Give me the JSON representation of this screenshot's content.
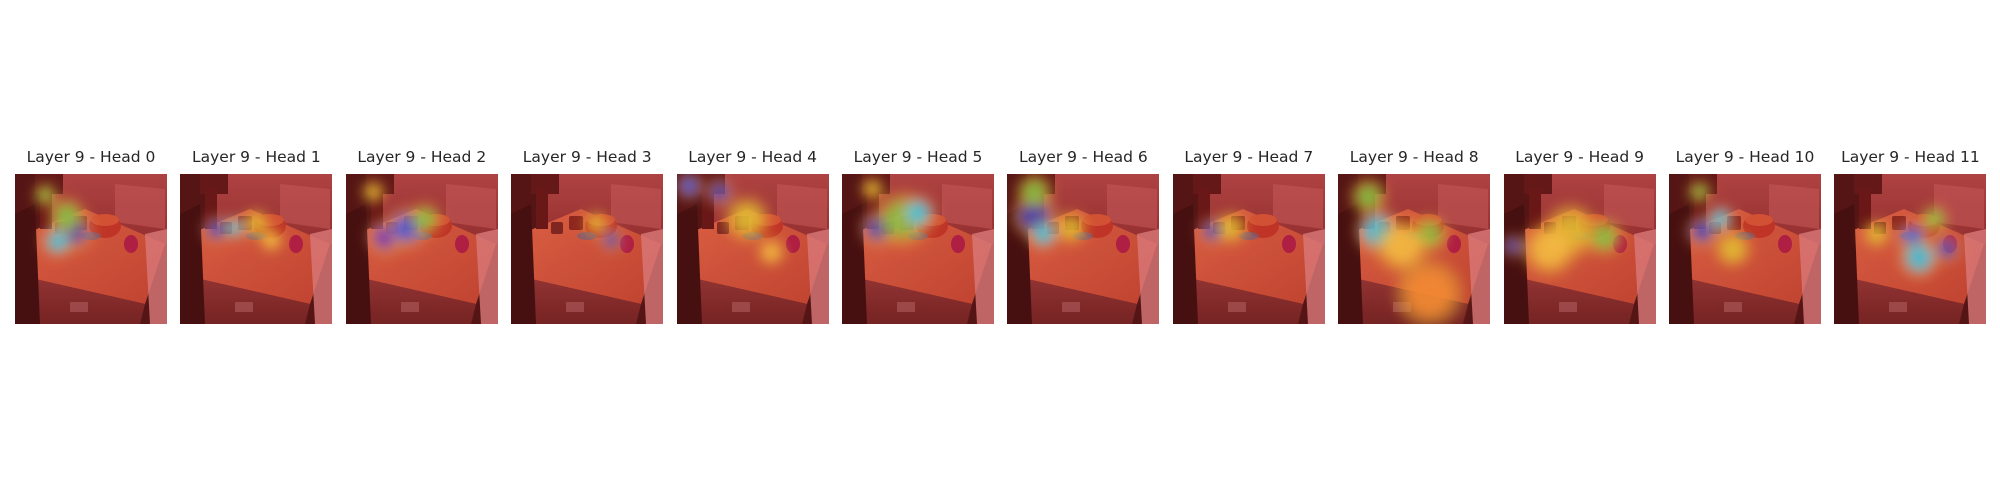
{
  "figure": {
    "panels": [
      {
        "title": "Layer 9 - Head 0",
        "blobs": [
          [
            0.38,
            0.38,
            0.09,
            "#1a38d8"
          ],
          [
            0.28,
            0.45,
            0.07,
            "#2bd9ff"
          ],
          [
            0.34,
            0.28,
            0.08,
            "#7bd94b"
          ],
          [
            0.2,
            0.14,
            0.05,
            "#8ae04a"
          ]
        ]
      },
      {
        "title": "Layer 9 - Head 1",
        "blobs": [
          [
            0.24,
            0.37,
            0.06,
            "#1a38d8"
          ],
          [
            0.36,
            0.36,
            0.05,
            "#2bd9ff"
          ],
          [
            0.5,
            0.33,
            0.06,
            "#e8d43a"
          ],
          [
            0.6,
            0.44,
            0.05,
            "#ffe34a"
          ]
        ]
      },
      {
        "title": "Layer 9 - Head 2",
        "blobs": [
          [
            0.26,
            0.42,
            0.08,
            "#6a2bd8"
          ],
          [
            0.4,
            0.36,
            0.09,
            "#2b5cff"
          ],
          [
            0.18,
            0.12,
            0.05,
            "#e8d43a"
          ],
          [
            0.52,
            0.3,
            0.07,
            "#7bd94b"
          ]
        ]
      },
      {
        "title": "Layer 9 - Head 3",
        "blobs": [
          [
            0.66,
            0.44,
            0.05,
            "#1a38d8"
          ],
          [
            0.56,
            0.33,
            0.05,
            "#e8d43a"
          ]
        ]
      },
      {
        "title": "Layer 9 - Head 4",
        "blobs": [
          [
            0.08,
            0.08,
            0.06,
            "#2b5cff"
          ],
          [
            0.28,
            0.12,
            0.06,
            "#1a38d8"
          ],
          [
            0.46,
            0.3,
            0.1,
            "#e8d43a"
          ],
          [
            0.62,
            0.52,
            0.06,
            "#ffd34a"
          ]
        ]
      },
      {
        "title": "Layer 9 - Head 5",
        "blobs": [
          [
            0.24,
            0.36,
            0.08,
            "#1a38d8"
          ],
          [
            0.4,
            0.3,
            0.12,
            "#7bd94b"
          ],
          [
            0.5,
            0.26,
            0.08,
            "#2bd9ff"
          ],
          [
            0.2,
            0.1,
            0.05,
            "#e8d43a"
          ]
        ]
      },
      {
        "title": "Layer 9 - Head 6",
        "blobs": [
          [
            0.18,
            0.28,
            0.1,
            "#1a38d8"
          ],
          [
            0.18,
            0.12,
            0.08,
            "#7bd94b"
          ],
          [
            0.24,
            0.4,
            0.07,
            "#2bd9ff"
          ],
          [
            0.42,
            0.36,
            0.07,
            "#e8d43a"
          ]
        ]
      },
      {
        "title": "Layer 9 - Head 7",
        "blobs": [
          [
            0.26,
            0.38,
            0.06,
            "#1a38d8"
          ],
          [
            0.38,
            0.36,
            0.07,
            "#e8d43a"
          ]
        ]
      },
      {
        "title": "Layer 9 - Head 8",
        "blobs": [
          [
            0.26,
            0.38,
            0.1,
            "#2bd9ff"
          ],
          [
            0.2,
            0.15,
            0.08,
            "#7bd94b"
          ],
          [
            0.6,
            0.4,
            0.08,
            "#7bd94b"
          ],
          [
            0.42,
            0.48,
            0.12,
            "#ffd34a"
          ],
          [
            0.6,
            0.8,
            0.15,
            "#ff9a3a"
          ]
        ]
      },
      {
        "title": "Layer 9 - Head 9",
        "blobs": [
          [
            0.06,
            0.48,
            0.05,
            "#1a38d8"
          ],
          [
            0.44,
            0.38,
            0.12,
            "#e8d43a"
          ],
          [
            0.66,
            0.42,
            0.08,
            "#7bd94b"
          ],
          [
            0.3,
            0.5,
            0.12,
            "#ffd34a"
          ]
        ]
      },
      {
        "title": "Layer 9 - Head 10",
        "blobs": [
          [
            0.22,
            0.38,
            0.07,
            "#1a38d8"
          ],
          [
            0.34,
            0.3,
            0.06,
            "#2bd9ff"
          ],
          [
            0.2,
            0.12,
            0.05,
            "#7bd94b"
          ],
          [
            0.42,
            0.5,
            0.08,
            "#e8d43a"
          ]
        ]
      },
      {
        "title": "Layer 9 - Head 11",
        "blobs": [
          [
            0.28,
            0.4,
            0.06,
            "#e8d43a"
          ],
          [
            0.52,
            0.42,
            0.07,
            "#2b5cff"
          ],
          [
            0.74,
            0.5,
            0.06,
            "#1a38d8"
          ],
          [
            0.56,
            0.56,
            0.09,
            "#2bd9ff"
          ],
          [
            0.66,
            0.3,
            0.06,
            "#7bd94b"
          ]
        ]
      }
    ]
  }
}
